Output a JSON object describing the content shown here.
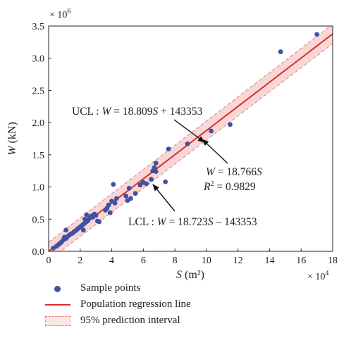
{
  "colors": {
    "points": "#3f51a3",
    "line": "#e02a2a",
    "band_fill": "#f6c9c9",
    "band_edge": "#e88080"
  },
  "chart_data": {
    "type": "scatter",
    "title": "",
    "xlabel_var": "S",
    "xlabel_unit": " (m²)",
    "ylabel_var": "W",
    "ylabel_unit": " (kN)",
    "x_multiplier": "× 10",
    "x_multiplier_exp": "4",
    "y_multiplier": "× 10",
    "y_multiplier_exp": "6",
    "xlim": [
      0,
      18
    ],
    "ylim": [
      0,
      3.5
    ],
    "x_ticks": [
      "0",
      "2",
      "4",
      "6",
      "8",
      "10",
      "12",
      "14",
      "16",
      "18"
    ],
    "y_ticks": [
      "0.0",
      "0.5",
      "1.0",
      "1.5",
      "2.0",
      "2.5",
      "3.0",
      "3.5"
    ],
    "grid": false,
    "regression": {
      "slope": 18.766,
      "intercept": 0
    },
    "ucl": {
      "slope": 18.809,
      "intercept": 143353
    },
    "lcl": {
      "slope": 18.723,
      "intercept": -143353
    },
    "series": [
      {
        "name": "Sample points",
        "x": [
          0.3,
          0.5,
          0.6,
          0.7,
          0.8,
          0.9,
          1.0,
          1.0,
          1.1,
          1.2,
          1.3,
          1.4,
          1.5,
          1.6,
          1.7,
          1.8,
          1.9,
          2.0,
          2.1,
          2.2,
          2.3,
          2.3,
          2.4,
          2.4,
          2.5,
          2.6,
          2.7,
          2.8,
          2.9,
          3.0,
          3.1,
          3.2,
          3.6,
          3.7,
          3.8,
          3.9,
          4.0,
          4.1,
          4.2,
          4.3,
          4.9,
          5.0,
          5.1,
          5.2,
          5.5,
          5.8,
          6.0,
          6.2,
          6.5,
          6.6,
          6.7,
          6.8,
          6.8,
          7.4,
          7.6,
          8.8,
          10.3,
          11.5,
          14.7,
          17.0,
          1.1,
          2.2
        ],
        "y": [
          0.05,
          0.08,
          0.1,
          0.12,
          0.14,
          0.17,
          0.19,
          0.22,
          0.2,
          0.23,
          0.25,
          0.27,
          0.28,
          0.3,
          0.32,
          0.34,
          0.36,
          0.38,
          0.4,
          0.42,
          0.44,
          0.5,
          0.46,
          0.57,
          0.48,
          0.52,
          0.55,
          0.53,
          0.58,
          0.56,
          0.47,
          0.46,
          0.64,
          0.67,
          0.72,
          0.6,
          0.78,
          1.04,
          0.75,
          0.82,
          0.86,
          0.79,
          0.98,
          0.82,
          0.9,
          1.03,
          1.07,
          1.05,
          1.12,
          1.25,
          1.3,
          1.37,
          1.24,
          1.08,
          1.59,
          1.67,
          1.87,
          1.97,
          3.1,
          3.37,
          0.33,
          0.33
        ]
      }
    ],
    "annotations": {
      "ucl": {
        "prefix": "UCL : ",
        "var": "W",
        "rest": " = 18.809",
        "var2": "S",
        "tail": " + 143353"
      },
      "reg_line1": {
        "var": "W",
        "rest": " = 18.766",
        "var2": "S"
      },
      "reg_line2": {
        "var": "R",
        "sup": "2",
        "rest": " = 0.9829"
      },
      "lcl": {
        "prefix": "LCL : ",
        "var": "W",
        "rest": " = 18.723",
        "var2": "S",
        "tail": " – 143353"
      }
    },
    "legend": [
      {
        "key": "dot",
        "label": "Sample points"
      },
      {
        "key": "line",
        "label": "Population regression line"
      },
      {
        "key": "band",
        "label": "95% prediction interval"
      }
    ]
  }
}
